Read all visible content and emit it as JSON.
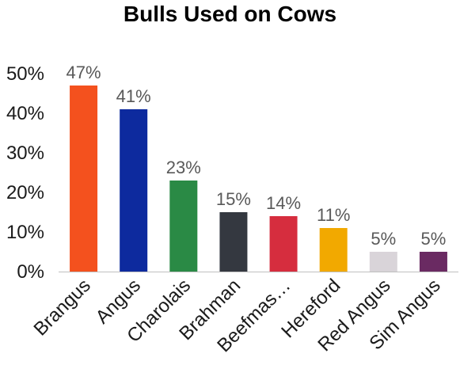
{
  "chart_data": {
    "type": "bar",
    "title": "Bulls Used on Cows",
    "xlabel": "",
    "ylabel": "",
    "categories": [
      "Brangus",
      "Angus",
      "Charolais",
      "Brahman",
      "Beefmas…",
      "Hereford",
      "Red Angus",
      "Sim Angus"
    ],
    "values": [
      47,
      41,
      23,
      15,
      14,
      11,
      5,
      5
    ],
    "data_labels": [
      "47%",
      "41%",
      "23%",
      "15%",
      "14%",
      "11%",
      "5%",
      "5%"
    ],
    "colors": [
      "#f4511e",
      "#0d2a9e",
      "#2a8a45",
      "#343840",
      "#d62d3e",
      "#f2a900",
      "#d9d4d9",
      "#6a2a62"
    ],
    "ylim": [
      0,
      50
    ],
    "yticks": [
      0,
      10,
      20,
      30,
      40,
      50
    ],
    "ytick_labels": [
      "0%",
      "10%",
      "20%",
      "30%",
      "40%",
      "50%"
    ],
    "grid": false,
    "legend": "none"
  }
}
